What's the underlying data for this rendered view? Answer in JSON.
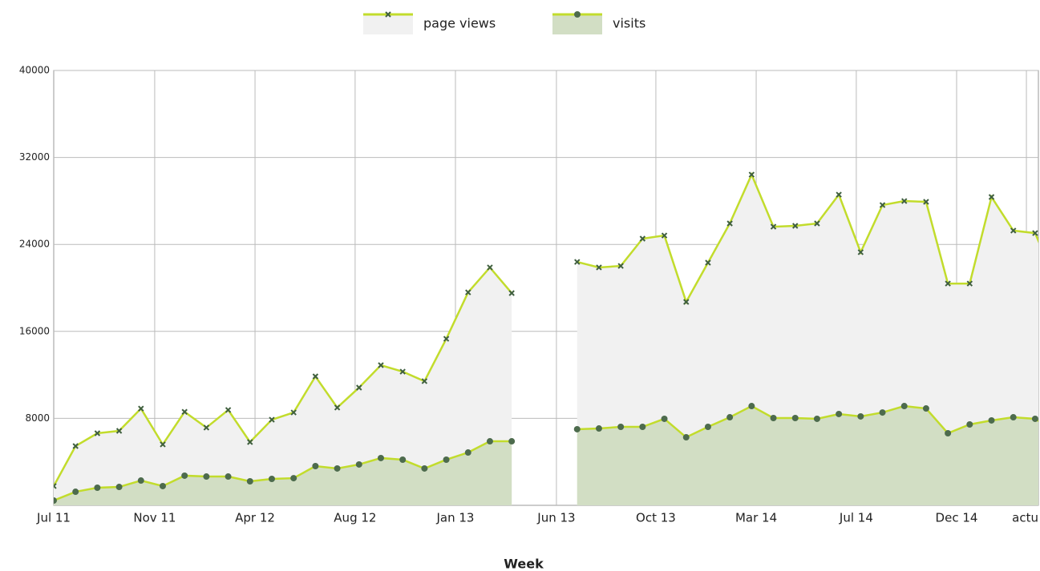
{
  "chart_data": {
    "type": "area",
    "x_label": "Week",
    "x": [
      0,
      1,
      2,
      3,
      4,
      5,
      6,
      7,
      8,
      9,
      10,
      11,
      12,
      13,
      14,
      15,
      16,
      17,
      18,
      19,
      20,
      21,
      22,
      23,
      24,
      25,
      26,
      27,
      28,
      29,
      30,
      31,
      32,
      33,
      34,
      35,
      36,
      37,
      38,
      39,
      40,
      41,
      42,
      43,
      44,
      45,
      46
    ],
    "series": [
      {
        "name": "page views",
        "color": "#c2dc2c",
        "fill": "#f1f1f1",
        "marker": "x",
        "values": [
          1770,
          5450,
          6630,
          6850,
          8900,
          5600,
          8600,
          7150,
          8770,
          5820,
          7880,
          8540,
          11860,
          8990,
          10830,
          12890,
          12300,
          11420,
          15320,
          19590,
          21880,
          19520,
          null,
          null,
          22390,
          21880,
          22020,
          24530,
          24820,
          18710,
          22320,
          25930,
          30420,
          25630,
          25710,
          25930,
          28580,
          23280,
          27620,
          27990,
          27920,
          20400,
          20400,
          28360,
          25270,
          25040,
          20330
        ]
      },
      {
        "name": "visits",
        "color": "#c2dc2c",
        "fill": "#d2dec4",
        "marker": "o",
        "values": [
          440,
          1250,
          1620,
          1690,
          2280,
          1770,
          2730,
          2650,
          2650,
          2210,
          2430,
          2500,
          3610,
          3390,
          3760,
          4350,
          4200,
          3390,
          4200,
          4860,
          5890,
          5890,
          null,
          null,
          7000,
          7070,
          7220,
          7220,
          7960,
          6260,
          7220,
          8100,
          9130,
          8030,
          8030,
          7960,
          8400,
          8180,
          8540,
          9130,
          8910,
          6630,
          7440,
          7810,
          8100,
          7960,
          6700
        ]
      }
    ],
    "xlim": [
      0,
      45.15
    ],
    "xticks": [
      {
        "value": 0,
        "label": "Jul 11"
      },
      {
        "value": 4.63,
        "label": "Nov 11"
      },
      {
        "value": 9.23,
        "label": "Apr 12"
      },
      {
        "value": 13.82,
        "label": "Aug 12"
      },
      {
        "value": 18.42,
        "label": "Jan 13"
      },
      {
        "value": 23.05,
        "label": "Jun 13"
      },
      {
        "value": 27.61,
        "label": "Oct 13"
      },
      {
        "value": 32.21,
        "label": "Mar 14"
      },
      {
        "value": 36.8,
        "label": "Jul 14"
      },
      {
        "value": 41.4,
        "label": "Dec 14"
      },
      {
        "value": 44.6,
        "label": "actu"
      }
    ],
    "ylim": [
      0,
      40000
    ],
    "yticks": [
      8000,
      16000,
      24000,
      32000,
      40000
    ],
    "grid": true
  }
}
